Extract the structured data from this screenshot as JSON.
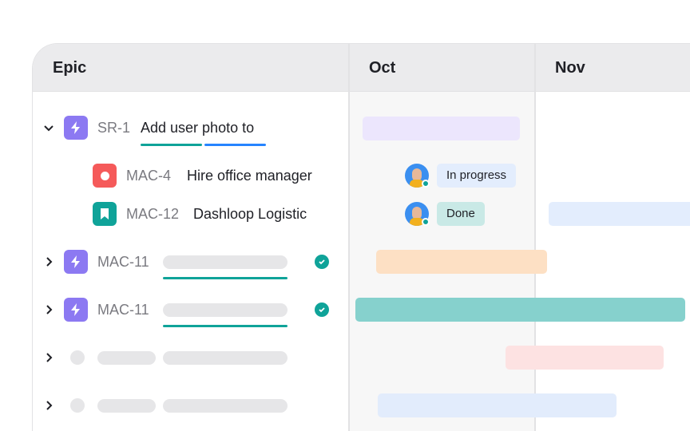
{
  "header": {
    "epic": "Epic",
    "months": [
      "Oct",
      "Nov"
    ]
  },
  "colors": {
    "accent_teal": "#0fa399",
    "accent_blue": "#2684ff",
    "epic_purple": "#8c79f2",
    "bug_red": "#f55a5a",
    "story_teal": "#0fa399"
  },
  "rows": [
    {
      "key": "SR-1",
      "title": "Add user photo to",
      "icon": "lightning-icon",
      "expanded": true
    },
    {
      "key": "MAC-4",
      "title": "Hire office manager",
      "icon": "bug-icon",
      "status": "In progress"
    },
    {
      "key": "MAC-12",
      "title": "Dashloop Logistic",
      "icon": "bookmark-icon",
      "status": "Done"
    },
    {
      "key": "MAC-11",
      "icon": "lightning-icon",
      "done": true
    },
    {
      "key": "MAC-11",
      "icon": "lightning-icon",
      "done": true
    }
  ]
}
